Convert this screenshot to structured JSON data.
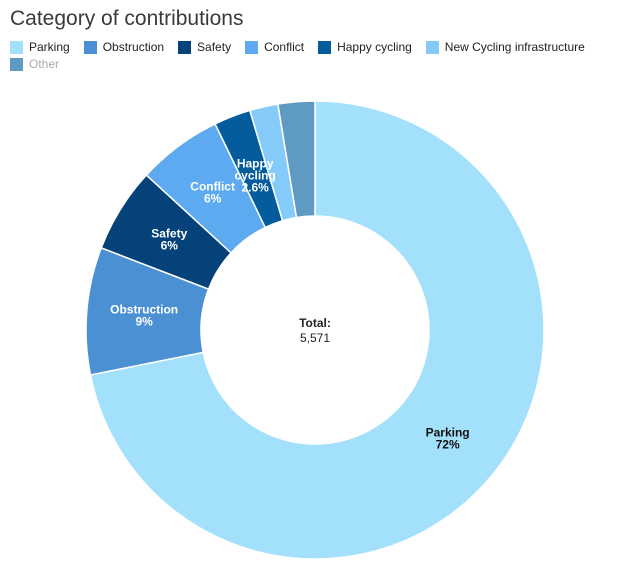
{
  "chart_data": {
    "type": "pie",
    "donut": true,
    "title": "Category of contributions",
    "total_label": "Total:",
    "total_value": "5,571",
    "slices": [
      {
        "name": "Parking",
        "value": 72,
        "color": "#a3e0fb",
        "label": "Parking",
        "pct": "72%",
        "text": "dark"
      },
      {
        "name": "Obstruction",
        "value": 9,
        "color": "#4a90d2",
        "label": "Obstruction",
        "pct": "9%",
        "text": "light"
      },
      {
        "name": "Safety",
        "value": 6,
        "color": "#06427a",
        "label": "Safety",
        "pct": "6%",
        "text": "light"
      },
      {
        "name": "Conflict",
        "value": 6,
        "color": "#5eaaf0",
        "label": "Conflict",
        "pct": "6%",
        "text": "light"
      },
      {
        "name": "Happy cycling",
        "value": 2.6,
        "color": "#045c9c",
        "label": "Happy cycling",
        "pct": "2.6%",
        "text": "light"
      },
      {
        "name": "New Cycling infrastructure",
        "value": 2.0,
        "color": "#85cbfa",
        "label": "",
        "pct": "",
        "text": "light"
      },
      {
        "name": "Other",
        "value": 2.6,
        "color": "#5f9ac2",
        "label": "",
        "pct": "",
        "text": "light"
      }
    ],
    "legend": [
      {
        "name": "Parking",
        "color": "#a3e0fb",
        "active": true
      },
      {
        "name": "Obstruction",
        "color": "#4a90d2",
        "active": true
      },
      {
        "name": "Safety",
        "color": "#06427a",
        "active": true
      },
      {
        "name": "Conflict",
        "color": "#5eaaf0",
        "active": true
      },
      {
        "name": "Happy cycling",
        "color": "#045c9c",
        "active": true
      },
      {
        "name": "New Cycling infrastructure",
        "color": "#85cbfa",
        "active": true
      },
      {
        "name": "Other",
        "color": "#5f9ac2",
        "active": false
      }
    ]
  }
}
